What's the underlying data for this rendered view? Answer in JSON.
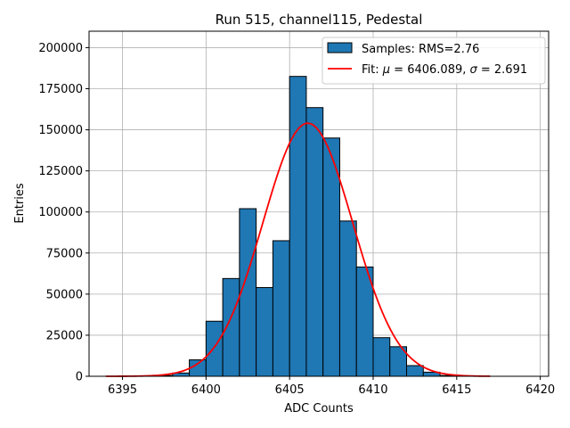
{
  "chart_data": {
    "type": "bar",
    "title": "Run 515, channel115, Pedestal",
    "xlabel": "ADC Counts",
    "ylabel": "Entries",
    "xlim": [
      6393,
      6420.5
    ],
    "ylim": [
      0,
      210000
    ],
    "grid": true,
    "legend_position": "top-right",
    "x_ticks": [
      "6395",
      "6400",
      "6405",
      "6410",
      "6415",
      "6420"
    ],
    "y_ticks": [
      "0",
      "25000",
      "50000",
      "75000",
      "100000",
      "125000",
      "150000",
      "175000",
      "200000"
    ],
    "x_tick_values": [
      6395,
      6400,
      6405,
      6410,
      6415,
      6420
    ],
    "y_tick_values": [
      0,
      25000,
      50000,
      75000,
      100000,
      125000,
      150000,
      175000,
      200000
    ],
    "bin_width": 1,
    "bin_edges_start": [
      6397,
      6398,
      6399,
      6400,
      6401,
      6402,
      6403,
      6404,
      6405,
      6406,
      6407,
      6408,
      6409,
      6410,
      6411,
      6412,
      6413,
      6414
    ],
    "values": [
      500,
      2000,
      10000,
      33500,
      59500,
      102000,
      54000,
      82500,
      182500,
      163500,
      145000,
      94500,
      66500,
      23500,
      18000,
      6500,
      2500,
      500
    ],
    "fit": {
      "mu": 6406.089,
      "sigma": 2.691,
      "amplitude": 154000,
      "x_range": [
        6394,
        6417
      ]
    },
    "bar_color": "#1f77b4",
    "fit_color": "#ff0000",
    "series": [
      {
        "name": "Samples: RMS=2.76",
        "kind": "histogram"
      },
      {
        "name_prefix": "Fit: ",
        "name_mid1": " = 6406.089, ",
        "name_mid2": " = 2.691",
        "kind": "gaussian-fit"
      }
    ]
  }
}
